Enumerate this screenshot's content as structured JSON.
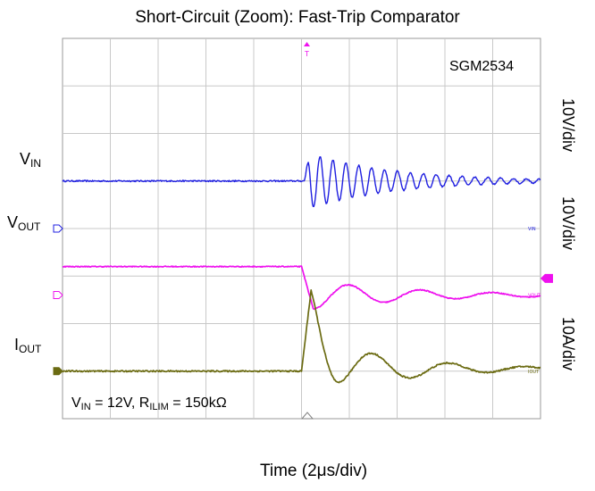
{
  "chart_data": {
    "type": "line",
    "title": "Short-Circuit (Zoom): Fast-Trip Comparator",
    "xlabel": "Time (2μs/div)",
    "part_number": "SGM2534",
    "conditions": {
      "vin_sym": "V",
      "vin_sub": "IN",
      "vin_val": " = 12V, ",
      "rilim_sym": "R",
      "rilim_sub": "ILIM",
      "rilim_val": " = 150kΩ"
    },
    "divisions": {
      "x": 10,
      "y": 8
    },
    "trigger_marker": "T",
    "channels": [
      {
        "id": "vin",
        "sym": "V",
        "sub": "IN",
        "scale": "10V/div",
        "color": "#1f1fe0",
        "ref_label": "VIN",
        "ref_div": 4.0,
        "level_div": 5.0,
        "ringing": {
          "t0_div": 5.05,
          "amp_div": 0.62,
          "decay_div": 1.8,
          "period_div": 0.27,
          "noise_div": 0.03
        }
      },
      {
        "id": "vout",
        "sym": "V",
        "sub": "OUT",
        "scale": "10V/div",
        "color": "#ee11ee",
        "ref_label": "VOUT",
        "ref_div": 2.6,
        "level_div": 3.2,
        "final_div": 2.6,
        "fall_end_div": 5.25,
        "undershoot_div": -0.3,
        "settle_period_div": 1.5,
        "settle_decay_div": 2.2,
        "noise_div": 0.02
      },
      {
        "id": "iout",
        "sym": "I",
        "sub": "OUT",
        "scale": "10A/div",
        "color": "#6b6b12",
        "ref_label": "IOUT",
        "ref_div": 1.0,
        "level_div": 1.0,
        "peak_div": 2.7,
        "peak_t_div": 5.2,
        "rise_start_div": 5.0,
        "ring_amp_div": 1.2,
        "ring_period_div": 1.6,
        "ring_decay_div": 1.7,
        "noise_div": 0.03
      }
    ],
    "t_range_div": [
      0,
      10
    ],
    "time_per_div": "2μs"
  }
}
